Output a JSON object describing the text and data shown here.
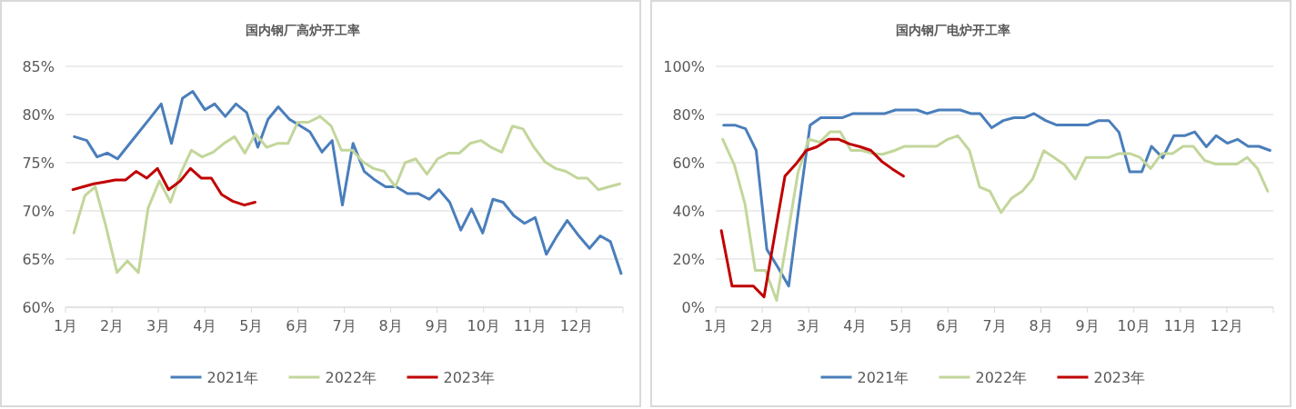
{
  "chart_data": [
    {
      "type": "line",
      "title": "国内钢厂高炉开工率",
      "xlim": [
        1,
        13
      ],
      "xticks": [
        {
          "value": 1,
          "label": "1月"
        },
        {
          "value": 2,
          "label": "2月"
        },
        {
          "value": 3,
          "label": "3月"
        },
        {
          "value": 4,
          "label": "4月"
        },
        {
          "value": 5,
          "label": "5月"
        },
        {
          "value": 6,
          "label": "6月"
        },
        {
          "value": 7,
          "label": "7月"
        },
        {
          "value": 8,
          "label": "8月"
        },
        {
          "value": 9,
          "label": "9月"
        },
        {
          "value": 10,
          "label": "10月"
        },
        {
          "value": 11,
          "label": "11月"
        },
        {
          "value": 12,
          "label": "12月"
        },
        {
          "value": 13,
          "label": null
        }
      ],
      "ylim": [
        60,
        85
      ],
      "yticks": [
        {
          "value": 60,
          "label": "60%"
        },
        {
          "value": 65,
          "label": "65%"
        },
        {
          "value": 70,
          "label": "70%"
        },
        {
          "value": 75,
          "label": "75%"
        },
        {
          "value": 80,
          "label": "80%"
        },
        {
          "value": 85,
          "label": "85%"
        }
      ],
      "grid": "y",
      "legend": "bottom",
      "marker": "none",
      "series": [
        {
          "name": "2021年",
          "color": "#4a7ebb",
          "x": [
            1.19,
            1.46,
            1.68,
            1.9,
            2.12,
            2.55,
            2.85,
            3.06,
            3.28,
            3.52,
            3.74,
            4.0,
            4.21,
            4.44,
            4.67,
            4.9,
            5.14,
            5.36,
            5.58,
            5.82,
            6.03,
            6.26,
            6.52,
            6.74,
            6.96,
            7.19,
            7.43,
            7.66,
            7.89,
            8.12,
            8.36,
            8.59,
            8.83,
            9.04,
            9.27,
            9.51,
            9.74,
            9.98,
            10.2,
            10.42,
            10.65,
            10.88,
            11.11,
            11.35,
            11.58,
            11.8,
            12.05,
            12.28,
            12.51,
            12.73,
            12.96
          ],
          "values": [
            77.7,
            77.3,
            75.6,
            76.0,
            75.4,
            78.0,
            79.8,
            81.1,
            77.0,
            81.7,
            82.4,
            80.5,
            81.1,
            79.8,
            81.1,
            80.2,
            76.6,
            79.5,
            80.8,
            79.5,
            78.9,
            78.2,
            76.1,
            77.3,
            70.6,
            77.0,
            74.1,
            73.2,
            72.5,
            72.5,
            71.8,
            71.8,
            71.2,
            72.2,
            70.9,
            68.0,
            70.2,
            67.7,
            71.2,
            70.9,
            69.5,
            68.7,
            69.3,
            65.5,
            67.4,
            69.0,
            67.4,
            66.1,
            67.4,
            66.8,
            63.5
          ]
        },
        {
          "name": "2022年",
          "color": "#c3d69b",
          "x": [
            1.18,
            1.42,
            1.64,
            1.87,
            2.11,
            2.33,
            2.57,
            2.78,
            3.02,
            3.26,
            3.48,
            3.71,
            3.94,
            4.18,
            4.41,
            4.64,
            4.86,
            5.09,
            5.33,
            5.56,
            5.79,
            6.0,
            6.23,
            6.48,
            6.72,
            6.94,
            7.17,
            7.4,
            7.63,
            7.86,
            8.1,
            8.31,
            8.54,
            8.78,
            9.01,
            9.25,
            9.48,
            9.71,
            9.94,
            10.16,
            10.39,
            10.62,
            10.85,
            11.07,
            11.32,
            11.55,
            11.77,
            12.02,
            12.23,
            12.47,
            12.7,
            12.93
          ],
          "values": [
            67.7,
            71.6,
            72.5,
            68.4,
            63.6,
            64.8,
            63.6,
            70.3,
            73.1,
            70.9,
            73.9,
            76.3,
            75.6,
            76.1,
            77.0,
            77.7,
            76.0,
            78.0,
            76.6,
            77.0,
            77.0,
            79.2,
            79.2,
            79.8,
            78.8,
            76.3,
            76.3,
            75.1,
            74.4,
            74.1,
            72.5,
            75.0,
            75.4,
            73.8,
            75.4,
            76.0,
            76.0,
            77.0,
            77.3,
            76.6,
            76.1,
            78.8,
            78.5,
            76.7,
            75.1,
            74.4,
            74.1,
            73.4,
            73.4,
            72.2,
            72.5,
            72.8
          ]
        },
        {
          "name": "2023年",
          "color": "#c00000",
          "x": [
            1.16,
            1.38,
            1.61,
            1.84,
            2.07,
            2.29,
            2.52,
            2.75,
            2.98,
            3.22,
            3.47,
            3.69,
            3.92,
            4.14,
            4.36,
            4.6,
            4.85,
            5.08
          ],
          "values": [
            72.2,
            72.5,
            72.8,
            73.0,
            73.2,
            73.2,
            74.1,
            73.4,
            74.4,
            72.2,
            73.1,
            74.4,
            73.4,
            73.4,
            71.7,
            71.0,
            70.6,
            70.9
          ]
        }
      ]
    },
    {
      "type": "line",
      "title": "国内钢厂电炉开工率",
      "xlim": [
        1,
        13
      ],
      "xticks": [
        {
          "value": 1,
          "label": "1月"
        },
        {
          "value": 2,
          "label": "2月"
        },
        {
          "value": 3,
          "label": "3月"
        },
        {
          "value": 4,
          "label": "4月"
        },
        {
          "value": 5,
          "label": "5月"
        },
        {
          "value": 6,
          "label": "6月"
        },
        {
          "value": 7,
          "label": "7月"
        },
        {
          "value": 8,
          "label": "8月"
        },
        {
          "value": 9,
          "label": "9月"
        },
        {
          "value": 10,
          "label": "10月"
        },
        {
          "value": 11,
          "label": "11月"
        },
        {
          "value": 12,
          "label": "12月"
        },
        {
          "value": 13,
          "label": null
        }
      ],
      "ylim": [
        0,
        100
      ],
      "yticks": [
        {
          "value": 0,
          "label": "0%"
        },
        {
          "value": 20,
          "label": "20%"
        },
        {
          "value": 40,
          "label": "40%"
        },
        {
          "value": 60,
          "label": "60%"
        },
        {
          "value": 80,
          "label": "80%"
        },
        {
          "value": 100,
          "label": "100%"
        }
      ],
      "grid": "y",
      "legend": "bottom",
      "marker": "none",
      "series": [
        {
          "name": "2021年",
          "color": "#4a7ebb",
          "x": [
            1.17,
            1.41,
            1.64,
            1.87,
            2.1,
            2.34,
            2.57,
            2.79,
            3.03,
            3.26,
            3.49,
            3.73,
            3.96,
            4.19,
            4.42,
            4.64,
            4.87,
            5.1,
            5.33,
            5.55,
            5.8,
            6.03,
            6.26,
            6.49,
            6.69,
            6.94,
            7.19,
            7.42,
            7.65,
            7.85,
            8.1,
            8.33,
            8.54,
            8.78,
            9.01,
            9.24,
            9.46,
            9.68,
            9.91,
            10.17,
            10.38,
            10.62,
            10.86,
            11.09,
            11.31,
            11.56,
            11.77,
            12.01,
            12.23,
            12.46,
            12.69,
            12.93
          ],
          "values": [
            75.6,
            75.6,
            74.1,
            65.1,
            24.0,
            16.5,
            8.8,
            41.6,
            75.6,
            78.7,
            78.7,
            78.7,
            80.4,
            80.4,
            80.4,
            80.4,
            81.9,
            81.9,
            81.9,
            80.4,
            81.9,
            81.9,
            81.9,
            80.4,
            80.4,
            74.5,
            77.5,
            78.7,
            78.7,
            80.4,
            77.5,
            75.7,
            75.7,
            75.7,
            75.7,
            77.5,
            77.5,
            72.6,
            56.2,
            56.2,
            66.8,
            62.0,
            71.2,
            71.2,
            72.8,
            66.6,
            71.2,
            68.1,
            69.7,
            66.8,
            66.8,
            65.1
          ]
        },
        {
          "name": "2022年",
          "color": "#c3d69b",
          "x": [
            1.15,
            1.4,
            1.63,
            1.85,
            2.07,
            2.31,
            2.54,
            2.77,
            3.0,
            3.24,
            3.46,
            3.68,
            3.91,
            4.14,
            4.37,
            4.59,
            4.84,
            5.07,
            5.3,
            5.53,
            5.75,
            5.99,
            6.21,
            6.46,
            6.68,
            6.9,
            7.14,
            7.37,
            7.6,
            7.82,
            8.06,
            8.28,
            8.51,
            8.74,
            8.97,
            9.21,
            9.46,
            9.68,
            9.91,
            10.13,
            10.36,
            10.6,
            10.83,
            11.06,
            11.28,
            11.52,
            11.76,
            11.99,
            12.22,
            12.44,
            12.66,
            12.88
          ],
          "values": [
            69.7,
            59.1,
            42.8,
            15.3,
            15.3,
            2.8,
            29.0,
            55.9,
            69.7,
            68.5,
            72.8,
            72.8,
            65.1,
            65.1,
            63.8,
            63.5,
            65.0,
            66.8,
            66.8,
            66.8,
            66.8,
            69.7,
            71.2,
            65.1,
            49.9,
            48.2,
            39.3,
            45.3,
            48.2,
            53.2,
            65.0,
            62.2,
            59.1,
            53.2,
            62.2,
            62.2,
            62.2,
            63.8,
            63.8,
            62.2,
            57.6,
            63.8,
            63.8,
            66.8,
            66.8,
            61.0,
            59.4,
            59.4,
            59.4,
            62.2,
            57.6,
            48.2
          ]
        },
        {
          "name": "2023年",
          "color": "#c00000",
          "x": [
            1.12,
            1.35,
            1.58,
            1.81,
            2.04,
            2.26,
            2.49,
            2.72,
            2.95,
            3.18,
            3.43,
            3.65,
            3.88,
            4.11,
            4.34,
            4.57,
            4.8,
            5.04
          ],
          "values": [
            31.8,
            8.8,
            8.8,
            8.8,
            4.3,
            29.0,
            54.4,
            59.3,
            65.1,
            66.6,
            69.7,
            69.7,
            67.8,
            66.6,
            65.1,
            60.6,
            57.4,
            54.4
          ]
        }
      ]
    }
  ]
}
